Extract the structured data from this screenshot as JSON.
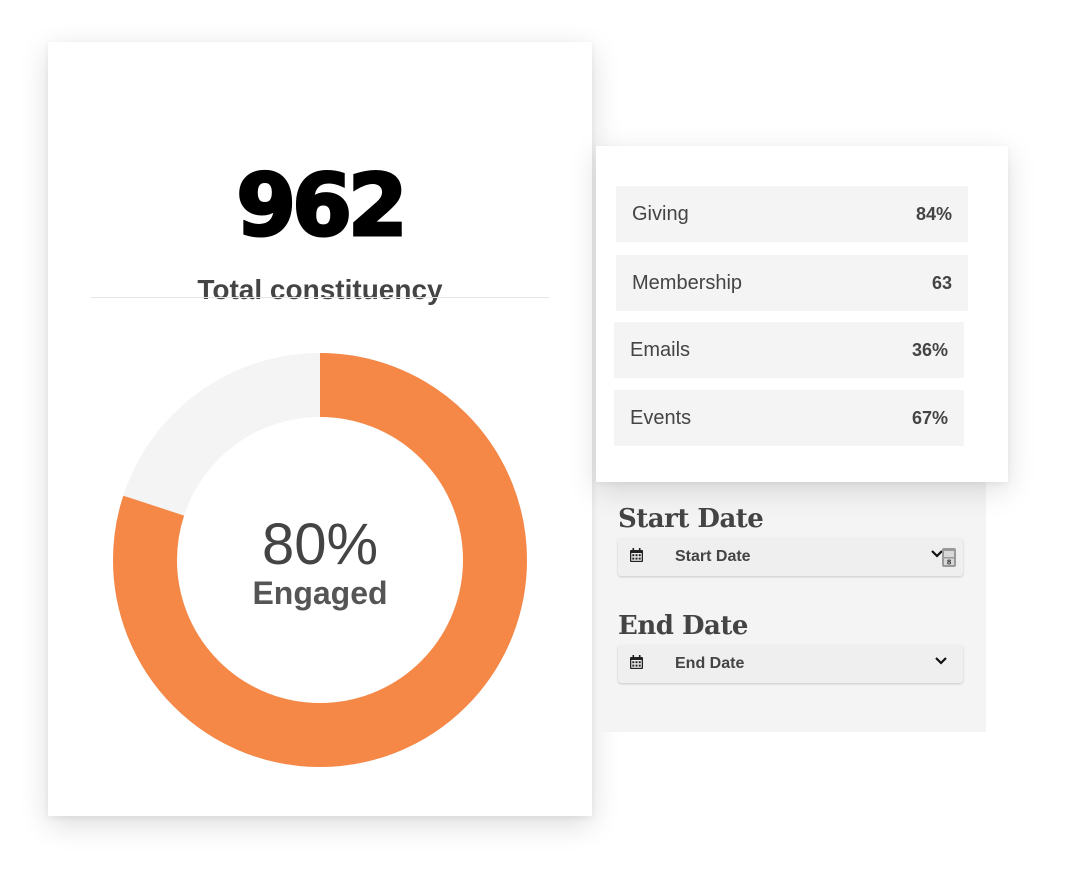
{
  "summary": {
    "total": "962",
    "total_label": "Total constituency"
  },
  "engagement": {
    "percent_label": "80%",
    "status_label": "Engaged",
    "fraction": 0.8,
    "fill_color": "#F58847",
    "track_color": "#F4F4F4"
  },
  "breakdown": {
    "items": [
      {
        "label": "Giving",
        "value": "84%"
      },
      {
        "label": "Membership",
        "value": "63"
      },
      {
        "label": "Emails",
        "value": "36%"
      },
      {
        "label": "Events",
        "value": "67%"
      }
    ]
  },
  "filters": {
    "start": {
      "heading": "Start Date",
      "placeholder": "Start Date",
      "icon": "calendar-icon"
    },
    "end": {
      "heading": "End Date",
      "placeholder": "End Date",
      "icon": "calendar-icon"
    }
  }
}
